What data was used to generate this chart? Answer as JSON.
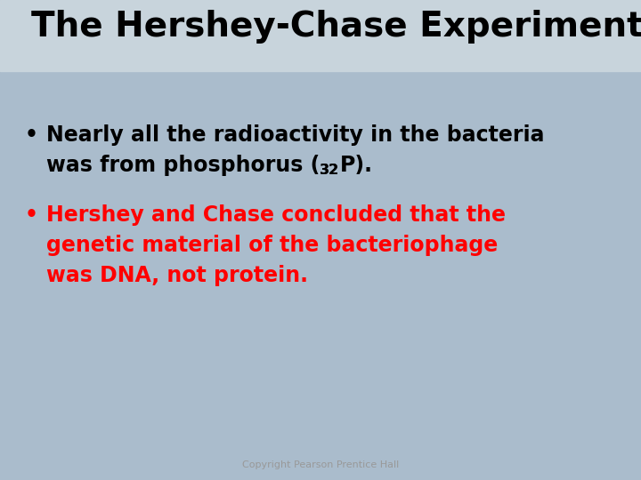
{
  "title": "The Hershey-Chase Experiment",
  "title_color": "#000000",
  "title_fontsize": 28,
  "title_weight": "bold",
  "bullet1_line1": "Nearly all the radioactivity in the bacteria",
  "bullet1_line2": "was from phosphorus (",
  "bullet1_sup": "32",
  "bullet1_end": "P).",
  "bullet2_line1": "Hershey and Chase concluded that the",
  "bullet2_line2": "genetic material of the bacteriophage",
  "bullet2_line3": "was DNA, not protein.",
  "bullet_color1": "#000000",
  "bullet_color2": "#ff0000",
  "bullet_fontsize": 17,
  "bullet_weight": "bold",
  "copyright": "Copyright Pearson Prentice Hall",
  "copyright_color": "#999999",
  "copyright_fontsize": 8,
  "bg_color": "#aabccc",
  "title_bar_color": "#c8d4dc"
}
